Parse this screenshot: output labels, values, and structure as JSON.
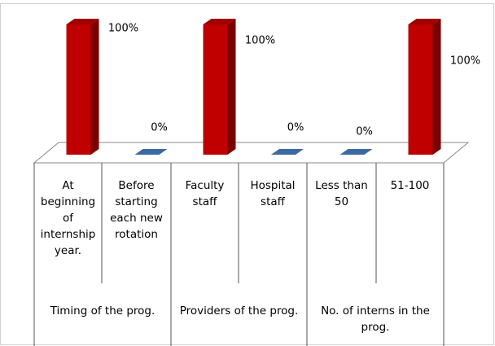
{
  "chart_data": {
    "type": "bar",
    "categories": [
      "At beginning of internship year.",
      "Before starting each new rotation",
      "Faculty staff",
      "Hospital staff",
      "Less than 50",
      "51-100"
    ],
    "values": [
      100,
      0,
      100,
      0,
      0,
      100
    ],
    "value_labels": [
      "100%",
      "0%",
      "100%",
      "0%",
      "0%",
      "100%"
    ],
    "groups": [
      "Timing of the prog.",
      "Providers of the prog.",
      "No. of  interns in the prog."
    ],
    "colors": {
      "positive": "#c00000",
      "zero": "#3b6aa3"
    }
  }
}
